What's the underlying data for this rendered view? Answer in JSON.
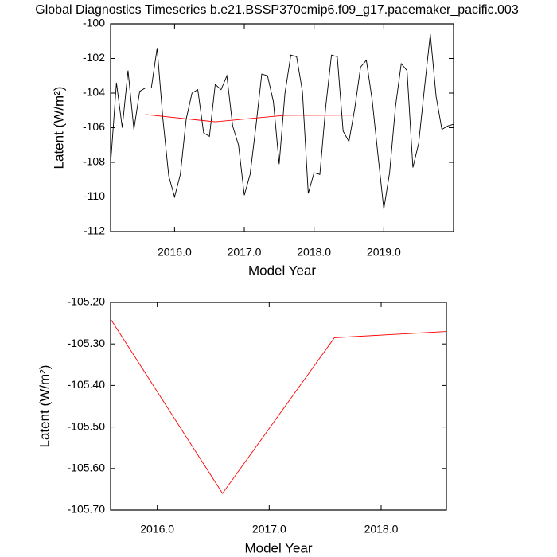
{
  "chart_data": [
    {
      "type": "line",
      "title": "Global Diagnostics Timeseries b.e21.BSSP370cmip6.f09_g17.pacemaker_pacific.003",
      "x_label": "Model Year",
      "y_label": "Latent (W/m²)",
      "xlim": [
        2015.083,
        2020.0
      ],
      "ylim": [
        -112,
        -100
      ],
      "xticks": [
        {
          "value": 2016,
          "label": "2016.0"
        },
        {
          "value": 2017,
          "label": "2017.0"
        },
        {
          "value": 2018,
          "label": "2018.0"
        },
        {
          "value": 2019,
          "label": "2019.0"
        }
      ],
      "yticks": [
        -112,
        -110,
        -108,
        -106,
        -104,
        -102,
        -100
      ],
      "series": [
        {
          "color": "#000000",
          "x": [
            2015.083,
            2015.167,
            2015.25,
            2015.333,
            2015.417,
            2015.5,
            2015.583,
            2015.667,
            2015.75,
            2015.833,
            2015.917,
            2016.0,
            2016.083,
            2016.167,
            2016.25,
            2016.333,
            2016.417,
            2016.5,
            2016.583,
            2016.667,
            2016.75,
            2016.833,
            2016.917,
            2017.0,
            2017.083,
            2017.167,
            2017.25,
            2017.333,
            2017.417,
            2017.5,
            2017.583,
            2017.667,
            2017.75,
            2017.833,
            2017.917,
            2018.0,
            2018.083,
            2018.167,
            2018.25,
            2018.333,
            2018.417,
            2018.5,
            2018.583,
            2018.667,
            2018.75,
            2018.833,
            2018.917,
            2019.0,
            2019.083,
            2019.167,
            2019.25,
            2019.333,
            2019.417,
            2019.5,
            2019.583,
            2019.667,
            2019.75,
            2019.833,
            2019.917,
            2020.0
          ],
          "values": [
            -108.1,
            -103.4,
            -106.0,
            -102.7,
            -106.1,
            -103.9,
            -103.7,
            -103.7,
            -101.4,
            -105.5,
            -108.8,
            -110.0,
            -108.7,
            -105.5,
            -104.0,
            -103.8,
            -106.3,
            -106.5,
            -103.5,
            -103.8,
            -103.0,
            -105.9,
            -107.0,
            -109.9,
            -108.7,
            -105.9,
            -102.9,
            -103.0,
            -104.5,
            -108.1,
            -104.0,
            -101.8,
            -101.9,
            -103.9,
            -109.8,
            -108.6,
            -108.7,
            -104.8,
            -101.8,
            -101.9,
            -106.2,
            -106.8,
            -104.9,
            -102.5,
            -102.1,
            -104.4,
            -107.6,
            -110.7,
            -108.6,
            -104.8,
            -102.3,
            -102.7,
            -108.3,
            -106.9,
            -103.7,
            -100.6,
            -104.2,
            -106.1,
            -105.9,
            -105.8
          ]
        },
        {
          "color": "#ff0000",
          "x": [
            2015.583,
            2016.583,
            2017.583,
            2018.583
          ],
          "values": [
            -105.24,
            -105.66,
            -105.285,
            -105.27
          ]
        }
      ]
    },
    {
      "type": "line",
      "x_label": "Model Year",
      "y_label": "Latent (W/m²)",
      "xlim": [
        2015.583,
        2018.583
      ],
      "ylim": [
        -105.7,
        -105.2
      ],
      "xticks": [
        {
          "value": 2016,
          "label": "2016.0"
        },
        {
          "value": 2017,
          "label": "2017.0"
        },
        {
          "value": 2018,
          "label": "2018.0"
        }
      ],
      "yticks": [
        {
          "value": -105.7,
          "label": "-105.70"
        },
        {
          "value": -105.6,
          "label": "-105.60"
        },
        {
          "value": -105.5,
          "label": "-105.50"
        },
        {
          "value": -105.4,
          "label": "-105.40"
        },
        {
          "value": -105.3,
          "label": "-105.30"
        },
        {
          "value": -105.2,
          "label": "-105.20"
        }
      ],
      "series": [
        {
          "color": "#ff0000",
          "x": [
            2015.583,
            2016.583,
            2017.583,
            2018.583
          ],
          "values": [
            -105.24,
            -105.66,
            -105.285,
            -105.27
          ]
        }
      ]
    }
  ]
}
